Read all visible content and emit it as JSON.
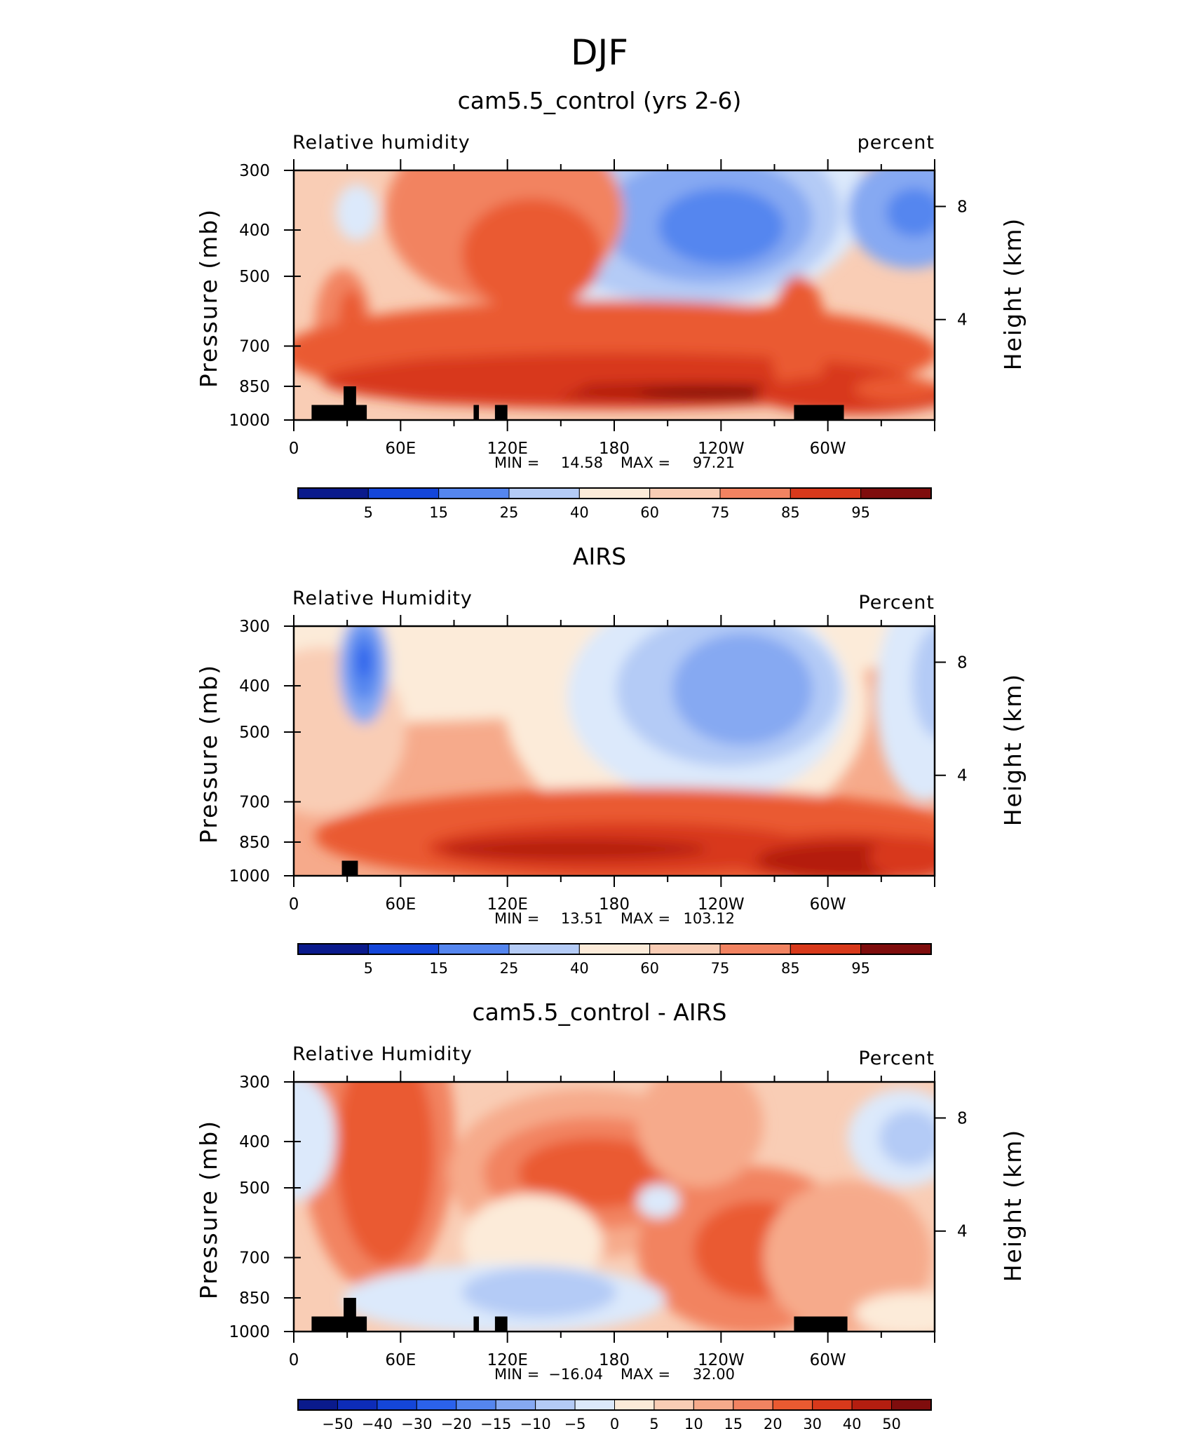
{
  "suptitle": "DJF",
  "colors": {
    "rh_scale": [
      "#0a1a8c",
      "#0d2cb8",
      "#1446d9",
      "#2b62ec",
      "#5586ef",
      "#86a9f2",
      "#b4cbf6",
      "#dce9fb",
      "#fcebd9",
      "#f9cdb5",
      "#f6aa8b",
      "#f28361",
      "#ea5a31",
      "#d8391b",
      "#b41e10",
      "#7f0d0d"
    ],
    "terrain": "#000000"
  },
  "chart_data": [
    {
      "type": "heatmap",
      "title": "cam5.5_control (yrs 2-6)",
      "left_label": "Relative humidity",
      "right_label": "percent",
      "ylabel": "Pressure (mb)",
      "ylabel_right": "Height (km)",
      "x_ticks": [
        "0",
        "60E",
        "120E",
        "180",
        "120W",
        "60W"
      ],
      "y_ticks": [
        "300",
        "400",
        "500",
        "700",
        "850",
        "1000"
      ],
      "y_right_ticks": [
        "8",
        "4"
      ],
      "ylim": [
        1000,
        300
      ],
      "xlim": [
        0,
        360
      ],
      "stats": {
        "min_label": "MIN =",
        "min": "14.58",
        "max_label": "MAX =",
        "max": "97.21"
      },
      "colorbar_labels": [
        "5",
        "15",
        "25",
        "40",
        "60",
        "75",
        "85",
        "95"
      ]
    },
    {
      "type": "heatmap",
      "title": "AIRS",
      "left_label": "Relative Humidity",
      "right_label": "Percent",
      "ylabel": "Pressure (mb)",
      "ylabel_right": "Height (km)",
      "x_ticks": [
        "0",
        "60E",
        "120E",
        "180",
        "120W",
        "60W"
      ],
      "y_ticks": [
        "300",
        "400",
        "500",
        "700",
        "850",
        "1000"
      ],
      "y_right_ticks": [
        "8",
        "4"
      ],
      "ylim": [
        1000,
        300
      ],
      "xlim": [
        0,
        360
      ],
      "stats": {
        "min_label": "MIN =",
        "min": "13.51",
        "max_label": "MAX =",
        "max": "103.12"
      },
      "colorbar_labels": [
        "5",
        "15",
        "25",
        "40",
        "60",
        "75",
        "85",
        "95"
      ]
    },
    {
      "type": "heatmap",
      "title": "cam5.5_control - AIRS",
      "left_label": "Relative Humidity",
      "right_label": "Percent",
      "ylabel": "Pressure (mb)",
      "ylabel_right": "Height (km)",
      "x_ticks": [
        "0",
        "60E",
        "120E",
        "180",
        "120W",
        "60W"
      ],
      "y_ticks": [
        "300",
        "400",
        "500",
        "700",
        "850",
        "1000"
      ],
      "y_right_ticks": [
        "8",
        "4"
      ],
      "ylim": [
        1000,
        300
      ],
      "xlim": [
        0,
        360
      ],
      "stats": {
        "min_label": "MIN =",
        "min": "−16.04",
        "max_label": "MAX =",
        "max": "32.00"
      },
      "colorbar_labels": [
        "−50",
        "−40",
        "−30",
        "−20",
        "−15",
        "−10",
        "−5",
        "0",
        "5",
        "10",
        "15",
        "20",
        "30",
        "40",
        "50"
      ]
    }
  ]
}
